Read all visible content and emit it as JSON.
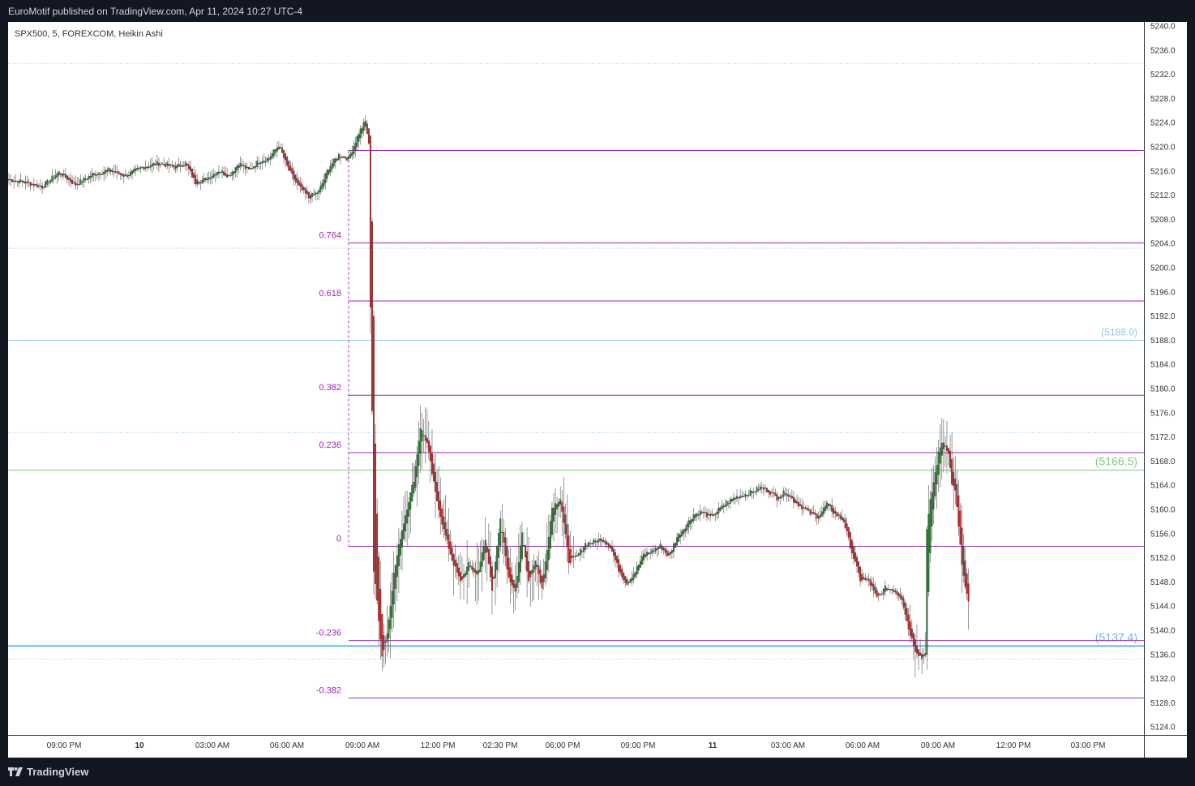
{
  "header": {
    "publish_text": "EuroMotif published on TradingView.com, Apr 11, 2024 10:27 UTC-4"
  },
  "footer": {
    "brand": "TradingView",
    "logo_icon": "tradingview-logo-icon"
  },
  "chart_data": {
    "type": "candlestick",
    "title": "SPX500, 5, FOREXCOM, Heikin Ashi",
    "y_axis": {
      "position": "right",
      "range": [
        5122,
        5241
      ],
      "ticks": [
        "5240.0",
        "5236.0",
        "5232.0",
        "5228.0",
        "5224.0",
        "5220.0",
        "5216.0",
        "5212.0",
        "5208.0",
        "5204.0",
        "5200.0",
        "5196.0",
        "5192.0",
        "5188.0",
        "5184.0",
        "5180.0",
        "5176.0",
        "5172.0",
        "5168.0",
        "5164.0",
        "5160.0",
        "5156.0",
        "5152.0",
        "5148.0",
        "5144.0",
        "5140.0",
        "5136.0",
        "5132.0",
        "5128.0",
        "5124.0"
      ]
    },
    "x_axis": {
      "ticks": [
        {
          "label": "09:00 PM",
          "bold": false
        },
        {
          "label": "10",
          "bold": true
        },
        {
          "label": "03:00 AM",
          "bold": false
        },
        {
          "label": "06:00 AM",
          "bold": false
        },
        {
          "label": "09:00 AM",
          "bold": false
        },
        {
          "label": "12:00 PM",
          "bold": false
        },
        {
          "label": "02:30 PM",
          "bold": false
        },
        {
          "label": "06:00 PM",
          "bold": false
        },
        {
          "label": "09:00 PM",
          "bold": false
        },
        {
          "label": "11",
          "bold": true
        },
        {
          "label": "03:00 AM",
          "bold": false
        },
        {
          "label": "06:00 AM",
          "bold": false
        },
        {
          "label": "09:00 AM",
          "bold": false
        },
        {
          "label": "12:00 PM",
          "bold": false
        },
        {
          "label": "03:00 PM",
          "bold": false
        }
      ]
    },
    "fib_levels": [
      {
        "label": "0.764",
        "price": 5204.1
      },
      {
        "label": "0.618",
        "price": 5194.5
      },
      {
        "label": "0.382",
        "price": 5178.9
      },
      {
        "label": "0.236",
        "price": 5169.4
      },
      {
        "label": "0",
        "price": 5153.9
      },
      {
        "label": "-0.236",
        "price": 5138.3
      },
      {
        "label": "-0.382",
        "price": 5128.8
      }
    ],
    "fib_top_line": 5219.4,
    "horizontal_lines": [
      {
        "label": "(5188.0)",
        "price": 5188.0,
        "color": "#90c8e8"
      },
      {
        "label": "(5166.5)",
        "price": 5166.5,
        "color": "#81c784"
      },
      {
        "label": "(5137.4)",
        "price": 5137.4,
        "color": "#64b5f6"
      }
    ],
    "dotted_levels": [
      5233.8,
      5203.2,
      5172.7,
      5135.2
    ],
    "price_anchors": [
      {
        "bar": 0,
        "price": 5214.6
      },
      {
        "bar": 10,
        "price": 5214.1
      },
      {
        "bar": 20,
        "price": 5213.4
      },
      {
        "bar": 30,
        "price": 5215.8
      },
      {
        "bar": 40,
        "price": 5213.7
      },
      {
        "bar": 50,
        "price": 5215.4
      },
      {
        "bar": 60,
        "price": 5216.1
      },
      {
        "bar": 70,
        "price": 5215.2
      },
      {
        "bar": 80,
        "price": 5216.6
      },
      {
        "bar": 90,
        "price": 5217.3
      },
      {
        "bar": 100,
        "price": 5216.6
      },
      {
        "bar": 106,
        "price": 5217.3
      },
      {
        "bar": 112,
        "price": 5214.1
      },
      {
        "bar": 118,
        "price": 5214.6
      },
      {
        "bar": 126,
        "price": 5216.1
      },
      {
        "bar": 132,
        "price": 5215.2
      },
      {
        "bar": 138,
        "price": 5217.3
      },
      {
        "bar": 144,
        "price": 5216.1
      },
      {
        "bar": 150,
        "price": 5217.6
      },
      {
        "bar": 156,
        "price": 5218.1
      },
      {
        "bar": 162,
        "price": 5220.3
      },
      {
        "bar": 168,
        "price": 5216.1
      },
      {
        "bar": 174,
        "price": 5213.4
      },
      {
        "bar": 180,
        "price": 5211.6
      },
      {
        "bar": 186,
        "price": 5212.6
      },
      {
        "bar": 192,
        "price": 5216.6
      },
      {
        "bar": 198,
        "price": 5218.6
      },
      {
        "bar": 204,
        "price": 5218.1
      },
      {
        "bar": 210,
        "price": 5222.3
      },
      {
        "bar": 214,
        "price": 5224.2
      },
      {
        "bar": 216,
        "price": 5220.3
      },
      {
        "bar": 217,
        "price": 5193.7
      },
      {
        "bar": 218,
        "price": 5176.4
      },
      {
        "bar": 219,
        "price": 5149.8
      },
      {
        "bar": 221,
        "price": 5144.9
      },
      {
        "bar": 224,
        "price": 5135.7
      },
      {
        "bar": 227,
        "price": 5139.4
      },
      {
        "bar": 231,
        "price": 5149.3
      },
      {
        "bar": 235,
        "price": 5155.4
      },
      {
        "bar": 239,
        "price": 5160.3
      },
      {
        "bar": 243,
        "price": 5164.9
      },
      {
        "bar": 247,
        "price": 5173.6
      },
      {
        "bar": 251,
        "price": 5170.9
      },
      {
        "bar": 256,
        "price": 5162.7
      },
      {
        "bar": 261,
        "price": 5156.6
      },
      {
        "bar": 266,
        "price": 5151.7
      },
      {
        "bar": 271,
        "price": 5148.0
      },
      {
        "bar": 276,
        "price": 5150.9
      },
      {
        "bar": 281,
        "price": 5149.1
      },
      {
        "bar": 286,
        "price": 5154.9
      },
      {
        "bar": 290,
        "price": 5146.9
      },
      {
        "bar": 295,
        "price": 5158.1
      },
      {
        "bar": 300,
        "price": 5148.5
      },
      {
        "bar": 304,
        "price": 5146.8
      },
      {
        "bar": 308,
        "price": 5155.9
      },
      {
        "bar": 312,
        "price": 5148.2
      },
      {
        "bar": 316,
        "price": 5151.7
      },
      {
        "bar": 320,
        "price": 5146.9
      },
      {
        "bar": 326,
        "price": 5160.3
      },
      {
        "bar": 331,
        "price": 5161.8
      },
      {
        "bar": 336,
        "price": 5151.4
      },
      {
        "bar": 341,
        "price": 5152.2
      },
      {
        "bar": 346,
        "price": 5154.3
      },
      {
        "bar": 351,
        "price": 5154.6
      },
      {
        "bar": 356,
        "price": 5155.1
      },
      {
        "bar": 361,
        "price": 5153.8
      },
      {
        "bar": 366,
        "price": 5150.1
      },
      {
        "bar": 371,
        "price": 5147.7
      },
      {
        "bar": 376,
        "price": 5149.8
      },
      {
        "bar": 381,
        "price": 5152.5
      },
      {
        "bar": 386,
        "price": 5153.1
      },
      {
        "bar": 391,
        "price": 5154.0
      },
      {
        "bar": 396,
        "price": 5152.2
      },
      {
        "bar": 401,
        "price": 5155.4
      },
      {
        "bar": 406,
        "price": 5157.2
      },
      {
        "bar": 411,
        "price": 5159.1
      },
      {
        "bar": 416,
        "price": 5159.6
      },
      {
        "bar": 421,
        "price": 5158.7
      },
      {
        "bar": 426,
        "price": 5159.9
      },
      {
        "bar": 431,
        "price": 5161.1
      },
      {
        "bar": 436,
        "price": 5162.0
      },
      {
        "bar": 441,
        "price": 5162.4
      },
      {
        "bar": 446,
        "price": 5162.9
      },
      {
        "bar": 451,
        "price": 5163.6
      },
      {
        "bar": 456,
        "price": 5163.1
      },
      {
        "bar": 461,
        "price": 5161.9
      },
      {
        "bar": 466,
        "price": 5162.9
      },
      {
        "bar": 471,
        "price": 5161.5
      },
      {
        "bar": 476,
        "price": 5160.4
      },
      {
        "bar": 481,
        "price": 5159.3
      },
      {
        "bar": 486,
        "price": 5158.8
      },
      {
        "bar": 491,
        "price": 5160.9
      },
      {
        "bar": 496,
        "price": 5159.2
      },
      {
        "bar": 501,
        "price": 5158.2
      },
      {
        "bar": 506,
        "price": 5152.9
      },
      {
        "bar": 511,
        "price": 5148.4
      },
      {
        "bar": 516,
        "price": 5148.2
      },
      {
        "bar": 521,
        "price": 5145.3
      },
      {
        "bar": 526,
        "price": 5147.0
      },
      {
        "bar": 531,
        "price": 5146.7
      },
      {
        "bar": 536,
        "price": 5145.3
      },
      {
        "bar": 540,
        "price": 5140.3
      },
      {
        "bar": 544,
        "price": 5136.8
      },
      {
        "bar": 548,
        "price": 5135.4
      },
      {
        "bar": 550,
        "price": 5136.5
      },
      {
        "bar": 551,
        "price": 5156.6
      },
      {
        "bar": 553,
        "price": 5161.3
      },
      {
        "bar": 556,
        "price": 5166.0
      },
      {
        "bar": 558,
        "price": 5169.2
      },
      {
        "bar": 560,
        "price": 5171.2
      },
      {
        "bar": 562,
        "price": 5170.9
      },
      {
        "bar": 564,
        "price": 5169.1
      },
      {
        "bar": 566,
        "price": 5164.4
      },
      {
        "bar": 568,
        "price": 5163.0
      },
      {
        "bar": 570,
        "price": 5157.3
      },
      {
        "bar": 572,
        "price": 5150.8
      },
      {
        "bar": 574,
        "price": 5146.9
      },
      {
        "bar": 576,
        "price": 5144.9
      }
    ]
  }
}
